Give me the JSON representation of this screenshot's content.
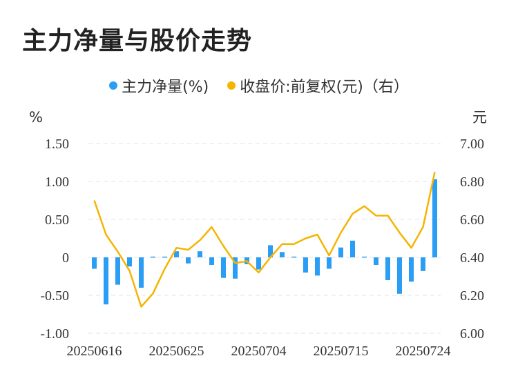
{
  "title": "主力净量与股价走势",
  "legend": [
    {
      "label": "主力净量(%)",
      "color": "#2a9df4"
    },
    {
      "label": "收盘价:前复权(元)（右）",
      "color": "#f5b400"
    }
  ],
  "chart_data": {
    "type": "bar+line",
    "y_left_unit": "%",
    "y_right_unit": "元",
    "y_left_ticks": [
      "1.50",
      "1.00",
      "0.50",
      "0",
      "-0.50",
      "-1.00"
    ],
    "y_right_ticks": [
      "7.00",
      "6.80",
      "6.60",
      "6.40",
      "6.20",
      "6.00"
    ],
    "ylim_left": [
      -1.0,
      1.5
    ],
    "ylim_right": [
      6.0,
      7.0
    ],
    "x_tick_labels": [
      "20250616",
      "20250625",
      "20250704",
      "20250715",
      "20250724"
    ],
    "x_tick_index": [
      0,
      7,
      14,
      21,
      28
    ],
    "bar_color": "#2a9df4",
    "line_color": "#f5b400",
    "grid": true,
    "series": [
      {
        "name": "主力净量(%)",
        "kind": "bar",
        "axis": "left",
        "values": [
          -0.15,
          -0.62,
          -0.36,
          -0.12,
          -0.4,
          0.01,
          0.01,
          0.08,
          -0.08,
          0.08,
          -0.1,
          -0.27,
          -0.28,
          -0.09,
          -0.16,
          0.16,
          0.07,
          0.01,
          -0.2,
          -0.24,
          -0.15,
          0.13,
          0.22,
          0.01,
          -0.1,
          -0.3,
          -0.48,
          -0.32,
          -0.18,
          1.03
        ]
      },
      {
        "name": "收盘价:前复权(元)（右）",
        "kind": "line",
        "axis": "right",
        "values": [
          6.7,
          6.52,
          6.43,
          6.33,
          6.14,
          6.21,
          6.34,
          6.45,
          6.44,
          6.49,
          6.56,
          6.46,
          6.37,
          6.38,
          6.32,
          6.4,
          6.47,
          6.47,
          6.5,
          6.52,
          6.41,
          6.53,
          6.63,
          6.67,
          6.62,
          6.62,
          6.53,
          6.45,
          6.56,
          6.85
        ]
      }
    ]
  }
}
